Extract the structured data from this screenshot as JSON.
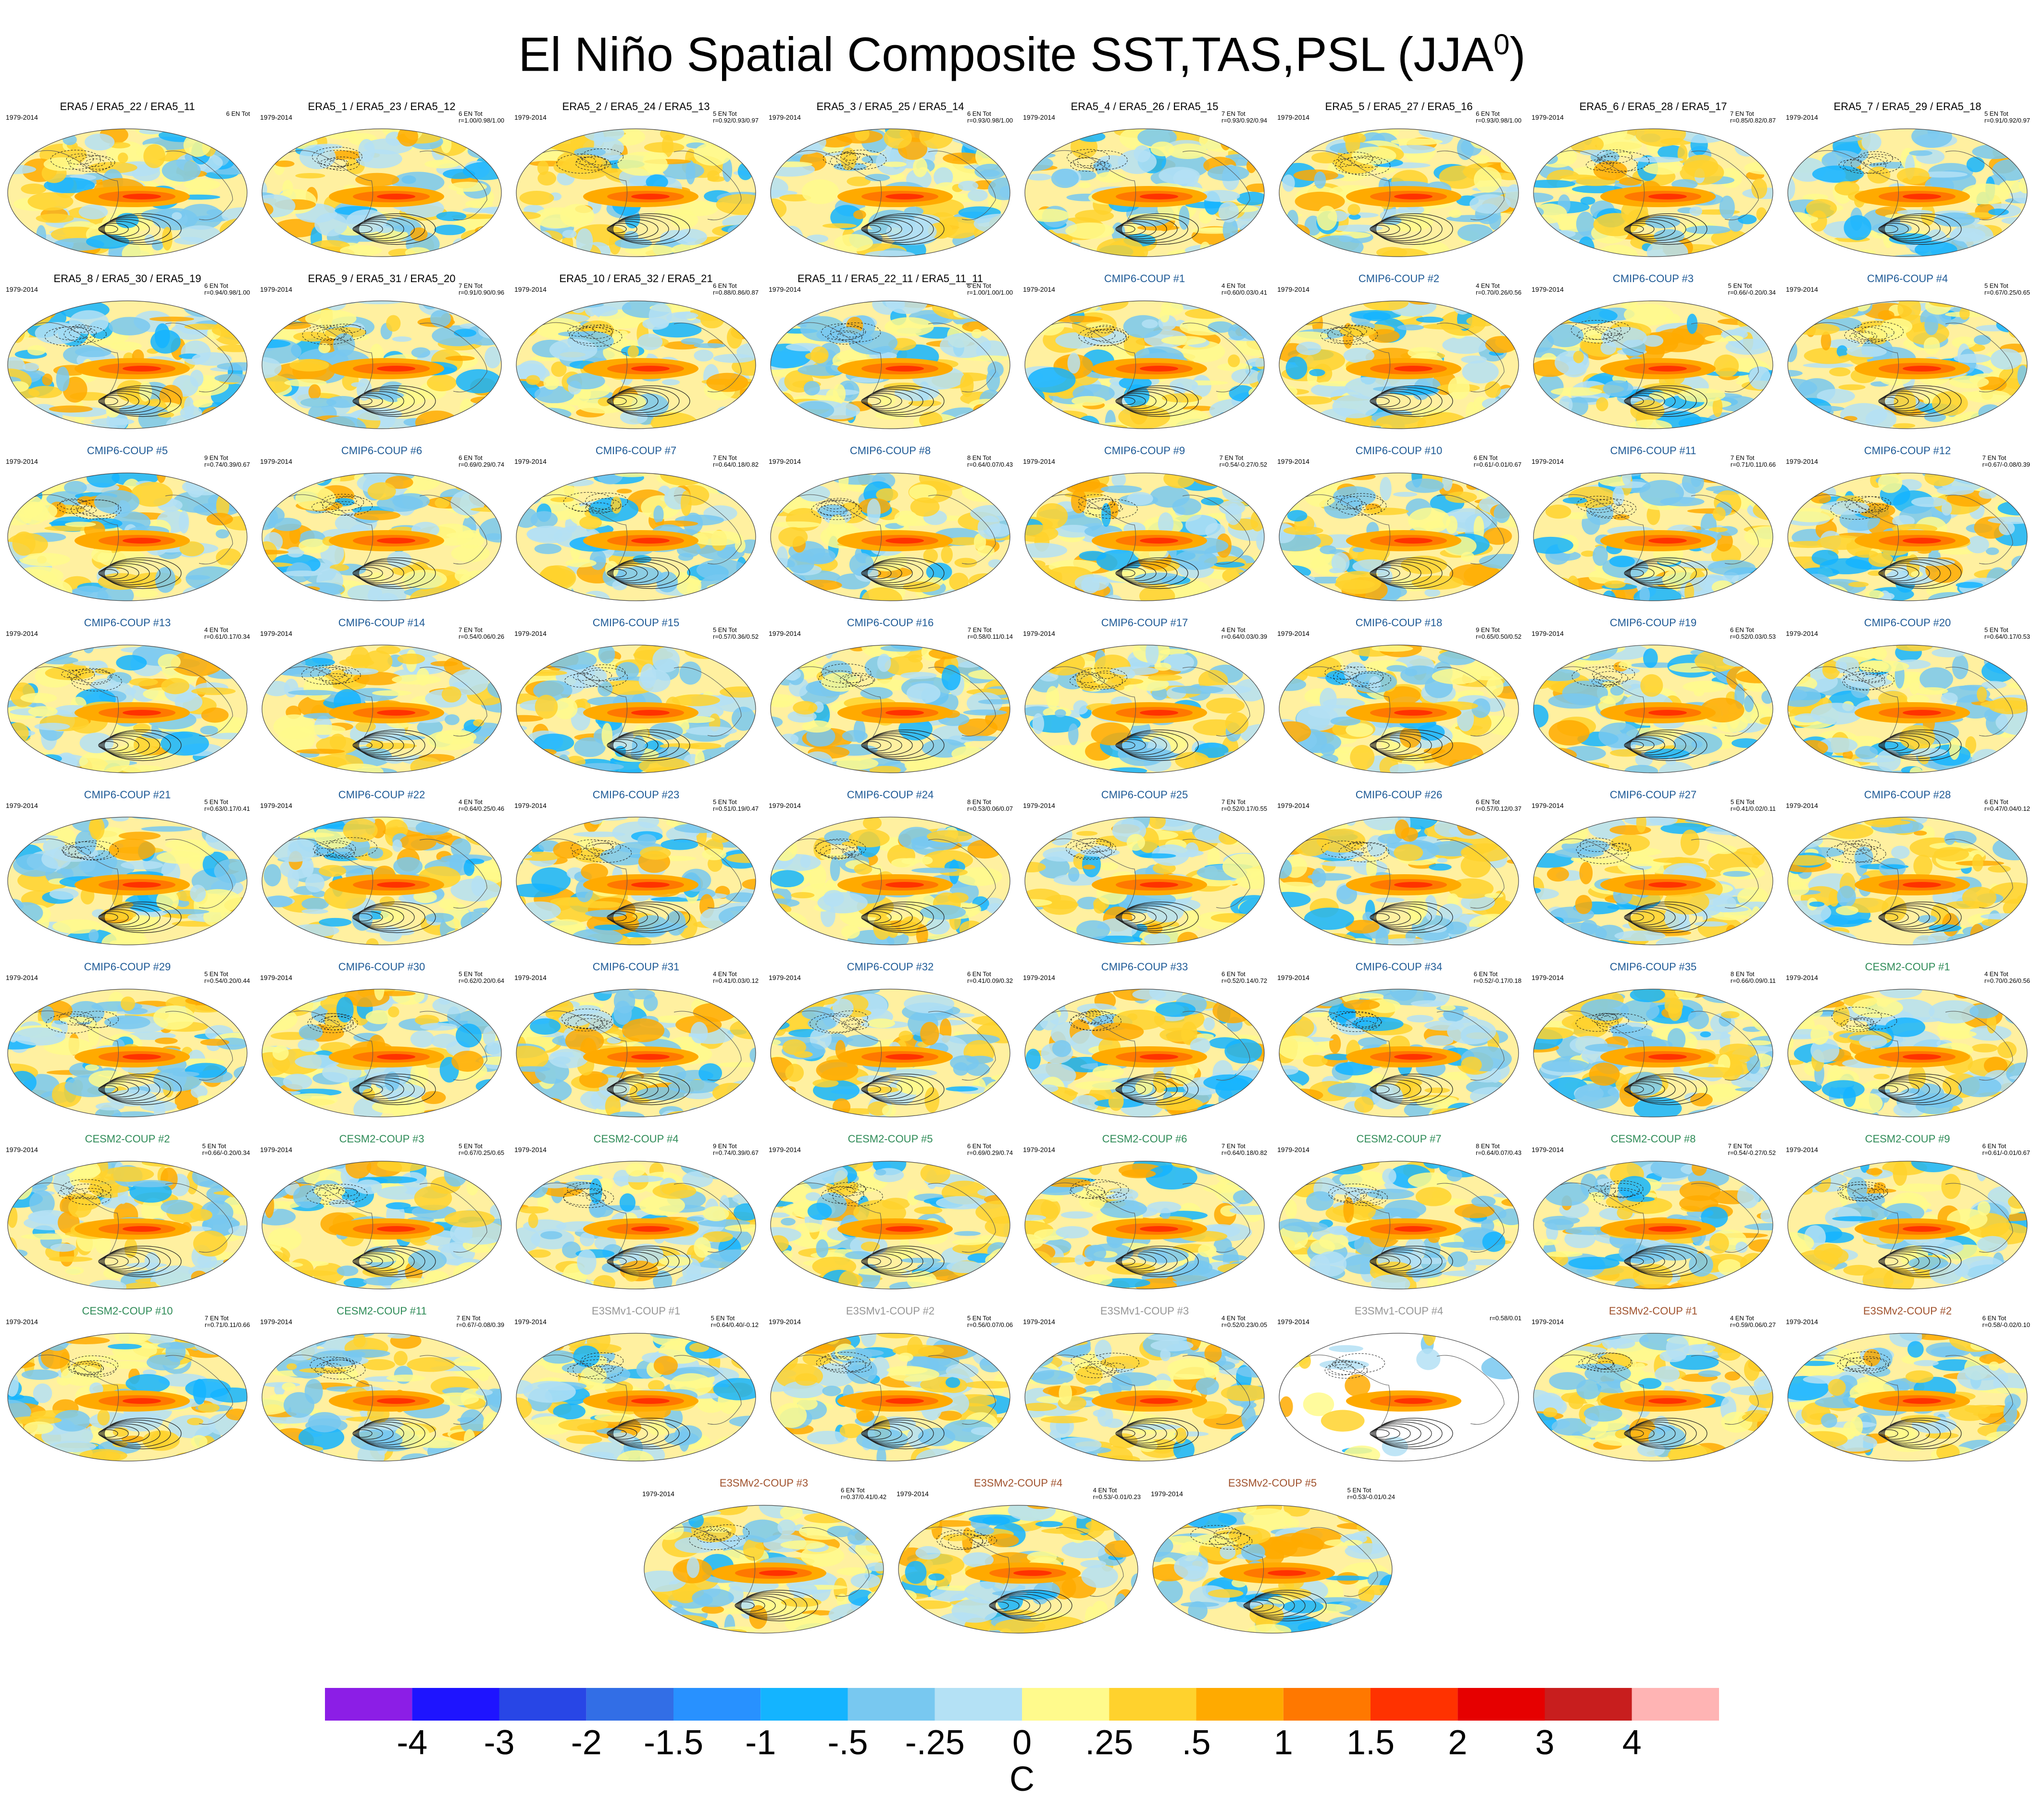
{
  "title_main": "El Niño Spatial Composite SST,TAS,PSL (JJA",
  "title_sup": "0",
  "title_close": ")",
  "period": "1979-2014",
  "units": "C",
  "colorbar": {
    "colors": [
      "#8c1ee6",
      "#1e14ff",
      "#2846e6",
      "#326ee6",
      "#2891ff",
      "#14b4ff",
      "#78c8f0",
      "#b4e1f5",
      "#fffa8c",
      "#ffd22d",
      "#ffaa00",
      "#ff7800",
      "#ff3200",
      "#e60000",
      "#c81e1e",
      "#ffb4b4"
    ],
    "ticks": [
      "-4",
      "-3",
      "-2",
      "-1.5",
      "-1",
      "-.5",
      "-.25",
      "0",
      ".25",
      ".5",
      "1",
      "1.5",
      "2",
      "3",
      "4"
    ]
  },
  "group_colors": {
    "ERA5": "#000000",
    "CMIP6": "#1e5a96",
    "CESM2": "#2e8b57",
    "E3SMv1": "#969696",
    "E3SMv2": "#a0522d"
  },
  "chart_data": {
    "type": "heatmap",
    "title": "El Niño Spatial Composite SST,TAS,PSL (JJA0)",
    "colorbar_levels": [
      -4,
      -3,
      -2,
      -1.5,
      -1,
      -0.5,
      -0.25,
      0,
      0.25,
      0.5,
      1,
      1.5,
      2,
      3,
      4
    ],
    "colorbar_units": "C",
    "panels": [
      {
        "title": "ERA5 / ERA5_22 / ERA5_11",
        "group": "ERA5",
        "count": "6 EN Tot",
        "stats": ""
      },
      {
        "title": "ERA5_1 / ERA5_23 / ERA5_12",
        "group": "ERA5",
        "count": "6 EN Tot",
        "stats": "r=1.00/0.98/1.00"
      },
      {
        "title": "ERA5_2 / ERA5_24 / ERA5_13",
        "group": "ERA5",
        "count": "5 EN Tot",
        "stats": "r=0.92/0.93/0.97"
      },
      {
        "title": "ERA5_3 / ERA5_25 / ERA5_14",
        "group": "ERA5",
        "count": "6 EN Tot",
        "stats": "r=0.93/0.98/1.00"
      },
      {
        "title": "ERA5_4 / ERA5_26 / ERA5_15",
        "group": "ERA5",
        "count": "7 EN Tot",
        "stats": "r=0.93/0.92/0.94"
      },
      {
        "title": "ERA5_5 / ERA5_27 / ERA5_16",
        "group": "ERA5",
        "count": "6 EN Tot",
        "stats": "r=0.93/0.98/1.00"
      },
      {
        "title": "ERA5_6 / ERA5_28 / ERA5_17",
        "group": "ERA5",
        "count": "7 EN Tot",
        "stats": "r=0.85/0.82/0.87"
      },
      {
        "title": "ERA5_7 / ERA5_29 / ERA5_18",
        "group": "ERA5",
        "count": "5 EN Tot",
        "stats": "r=0.91/0.92/0.97"
      },
      {
        "title": "ERA5_8 / ERA5_30 / ERA5_19",
        "group": "ERA5",
        "count": "6 EN Tot",
        "stats": "r=0.94/0.98/1.00"
      },
      {
        "title": "ERA5_9 / ERA5_31 / ERA5_20",
        "group": "ERA5",
        "count": "7 EN Tot",
        "stats": "r=0.91/0.90/0.96"
      },
      {
        "title": "ERA5_10 / ERA5_32 / ERA5_21",
        "group": "ERA5",
        "count": "6 EN Tot",
        "stats": "r=0.88/0.86/0.87"
      },
      {
        "title": "ERA5_11 / ERA5_22_11 / ERA5_11_11",
        "group": "ERA5",
        "count": "6 EN Tot",
        "stats": "r=1.00/1.00/1.00"
      },
      {
        "title": "CMIP6-COUP  #1",
        "group": "CMIP6",
        "count": "4 EN Tot",
        "stats": "r=0.60/0.03/0.41"
      },
      {
        "title": "CMIP6-COUP  #2",
        "group": "CMIP6",
        "count": "4 EN Tot",
        "stats": "r=0.70/0.26/0.56"
      },
      {
        "title": "CMIP6-COUP  #3",
        "group": "CMIP6",
        "count": "5 EN Tot",
        "stats": "r=0.66/-0.20/0.34"
      },
      {
        "title": "CMIP6-COUP  #4",
        "group": "CMIP6",
        "count": "5 EN Tot",
        "stats": "r=0.67/0.25/0.65"
      },
      {
        "title": "CMIP6-COUP  #5",
        "group": "CMIP6",
        "count": "9 EN Tot",
        "stats": "r=0.74/0.39/0.67"
      },
      {
        "title": "CMIP6-COUP  #6",
        "group": "CMIP6",
        "count": "6 EN Tot",
        "stats": "r=0.69/0.29/0.74"
      },
      {
        "title": "CMIP6-COUP  #7",
        "group": "CMIP6",
        "count": "7 EN Tot",
        "stats": "r=0.64/0.18/0.82"
      },
      {
        "title": "CMIP6-COUP  #8",
        "group": "CMIP6",
        "count": "8 EN Tot",
        "stats": "r=0.64/0.07/0.43"
      },
      {
        "title": "CMIP6-COUP  #9",
        "group": "CMIP6",
        "count": "7 EN Tot",
        "stats": "r=0.54/-0.27/0.52"
      },
      {
        "title": "CMIP6-COUP  #10",
        "group": "CMIP6",
        "count": "6 EN Tot",
        "stats": "r=0.61/-0.01/0.67"
      },
      {
        "title": "CMIP6-COUP  #11",
        "group": "CMIP6",
        "count": "7 EN Tot",
        "stats": "r=0.71/0.11/0.66"
      },
      {
        "title": "CMIP6-COUP  #12",
        "group": "CMIP6",
        "count": "7 EN Tot",
        "stats": "r=0.67/-0.08/0.39"
      },
      {
        "title": "CMIP6-COUP  #13",
        "group": "CMIP6",
        "count": "4 EN Tot",
        "stats": "r=0.61/0.17/0.34"
      },
      {
        "title": "CMIP6-COUP  #14",
        "group": "CMIP6",
        "count": "7 EN Tot",
        "stats": "r=0.54/0.06/0.26"
      },
      {
        "title": "CMIP6-COUP  #15",
        "group": "CMIP6",
        "count": "5 EN Tot",
        "stats": "r=0.57/0.36/0.52"
      },
      {
        "title": "CMIP6-COUP  #16",
        "group": "CMIP6",
        "count": "7 EN Tot",
        "stats": "r=0.58/0.11/0.14"
      },
      {
        "title": "CMIP6-COUP  #17",
        "group": "CMIP6",
        "count": "4 EN Tot",
        "stats": "r=0.64/0.03/0.39"
      },
      {
        "title": "CMIP6-COUP  #18",
        "group": "CMIP6",
        "count": "9 EN Tot",
        "stats": "r=0.65/0.50/0.52"
      },
      {
        "title": "CMIP6-COUP  #19",
        "group": "CMIP6",
        "count": "6 EN Tot",
        "stats": "r=0.52/0.03/0.53"
      },
      {
        "title": "CMIP6-COUP  #20",
        "group": "CMIP6",
        "count": "5 EN Tot",
        "stats": "r=0.64/0.17/0.53"
      },
      {
        "title": "CMIP6-COUP  #21",
        "group": "CMIP6",
        "count": "5 EN Tot",
        "stats": "r=0.63/0.17/0.41"
      },
      {
        "title": "CMIP6-COUP  #22",
        "group": "CMIP6",
        "count": "4 EN Tot",
        "stats": "r=0.64/0.25/0.46"
      },
      {
        "title": "CMIP6-COUP  #23",
        "group": "CMIP6",
        "count": "5 EN Tot",
        "stats": "r=0.51/0.19/0.47"
      },
      {
        "title": "CMIP6-COUP  #24",
        "group": "CMIP6",
        "count": "8 EN Tot",
        "stats": "r=0.53/0.06/0.07"
      },
      {
        "title": "CMIP6-COUP  #25",
        "group": "CMIP6",
        "count": "7 EN Tot",
        "stats": "r=0.52/0.17/0.55"
      },
      {
        "title": "CMIP6-COUP  #26",
        "group": "CMIP6",
        "count": "6 EN Tot",
        "stats": "r=0.57/0.12/0.37"
      },
      {
        "title": "CMIP6-COUP  #27",
        "group": "CMIP6",
        "count": "5 EN Tot",
        "stats": "r=0.41/0.02/0.11"
      },
      {
        "title": "CMIP6-COUP  #28",
        "group": "CMIP6",
        "count": "6 EN Tot",
        "stats": "r=0.47/0.04/0.12"
      },
      {
        "title": "CMIP6-COUP  #29",
        "group": "CMIP6",
        "count": "5 EN Tot",
        "stats": "r=0.54/0.20/0.44"
      },
      {
        "title": "CMIP6-COUP  #30",
        "group": "CMIP6",
        "count": "5 EN Tot",
        "stats": "r=0.62/0.20/0.64"
      },
      {
        "title": "CMIP6-COUP  #31",
        "group": "CMIP6",
        "count": "4 EN Tot",
        "stats": "r=0.41/0.03/0.12"
      },
      {
        "title": "CMIP6-COUP  #32",
        "group": "CMIP6",
        "count": "6 EN Tot",
        "stats": "r=0.41/0.09/0.32"
      },
      {
        "title": "CMIP6-COUP  #33",
        "group": "CMIP6",
        "count": "6 EN Tot",
        "stats": "r=0.52/0.14/0.72"
      },
      {
        "title": "CMIP6-COUP  #34",
        "group": "CMIP6",
        "count": "6 EN Tot",
        "stats": "r=0.52/-0.17/0.18"
      },
      {
        "title": "CMIP6-COUP  #35",
        "group": "CMIP6",
        "count": "8 EN Tot",
        "stats": "r=0.66/0.09/0.11"
      },
      {
        "title": "CESM2-COUP  #1",
        "group": "CESM2",
        "count": "4 EN Tot",
        "stats": "r=0.70/0.26/0.56"
      },
      {
        "title": "CESM2-COUP  #2",
        "group": "CESM2",
        "count": "5 EN Tot",
        "stats": "r=0.66/-0.20/0.34"
      },
      {
        "title": "CESM2-COUP  #3",
        "group": "CESM2",
        "count": "5 EN Tot",
        "stats": "r=0.67/0.25/0.65"
      },
      {
        "title": "CESM2-COUP  #4",
        "group": "CESM2",
        "count": "9 EN Tot",
        "stats": "r=0.74/0.39/0.67"
      },
      {
        "title": "CESM2-COUP  #5",
        "group": "CESM2",
        "count": "6 EN Tot",
        "stats": "r=0.69/0.29/0.74"
      },
      {
        "title": "CESM2-COUP  #6",
        "group": "CESM2",
        "count": "7 EN Tot",
        "stats": "r=0.64/0.18/0.82"
      },
      {
        "title": "CESM2-COUP  #7",
        "group": "CESM2",
        "count": "8 EN Tot",
        "stats": "r=0.64/0.07/0.43"
      },
      {
        "title": "CESM2-COUP  #8",
        "group": "CESM2",
        "count": "7 EN Tot",
        "stats": "r=0.54/-0.27/0.52"
      },
      {
        "title": "CESM2-COUP  #9",
        "group": "CESM2",
        "count": "6 EN Tot",
        "stats": "r=0.61/-0.01/0.67"
      },
      {
        "title": "CESM2-COUP  #10",
        "group": "CESM2",
        "count": "7 EN Tot",
        "stats": "r=0.71/0.11/0.66"
      },
      {
        "title": "CESM2-COUP  #11",
        "group": "CESM2",
        "count": "7 EN Tot",
        "stats": "r=0.67/-0.08/0.39"
      },
      {
        "title": "E3SMv1-COUP  #1",
        "group": "E3SMv1",
        "count": "5 EN Tot",
        "stats": "r=0.64/0.40/-0.12"
      },
      {
        "title": "E3SMv1-COUP  #2",
        "group": "E3SMv1",
        "count": "5 EN Tot",
        "stats": "r=0.56/0.07/0.06"
      },
      {
        "title": "E3SMv1-COUP  #3",
        "group": "E3SMv1",
        "count": "4 EN Tot",
        "stats": "r=0.52/0.23/0.05"
      },
      {
        "title": "E3SMv1-COUP  #4",
        "group": "E3SMv1",
        "count": "",
        "stats": "r=0.58/0.01"
      },
      {
        "title": "E3SMv2-COUP  #1",
        "group": "E3SMv2",
        "count": "4 EN Tot",
        "stats": "r=0.59/0.06/0.27"
      },
      {
        "title": "E3SMv2-COUP  #2",
        "group": "E3SMv2",
        "count": "6 EN Tot",
        "stats": "r=0.58/-0.02/0.10"
      },
      {
        "title": "E3SMv2-COUP  #3",
        "group": "E3SMv2",
        "count": "6 EN Tot",
        "stats": "r=0.37/0.41/0.42"
      },
      {
        "title": "E3SMv2-COUP  #4",
        "group": "E3SMv2",
        "count": "4 EN Tot",
        "stats": "r=0.53/-0.01/0.23"
      },
      {
        "title": "E3SMv2-COUP  #5",
        "group": "E3SMv2",
        "count": "5 EN Tot",
        "stats": "r=0.53/-0.01/0.24"
      }
    ]
  }
}
